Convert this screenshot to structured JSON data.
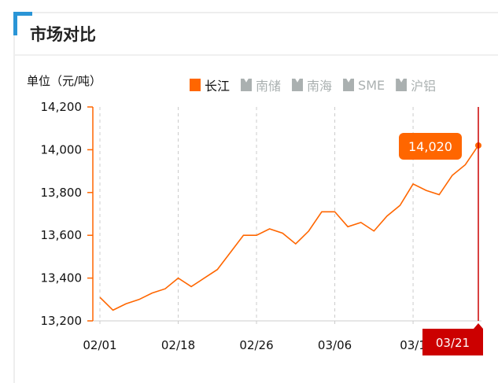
{
  "header": {
    "title": "市场对比"
  },
  "chart_data": {
    "type": "line",
    "ylabel": "单位（元/吨）",
    "ylim": [
      13200,
      14200
    ],
    "yticks": [
      "13,200",
      "13,400",
      "13,600",
      "13,800",
      "14,000",
      "14,200"
    ],
    "ytick_values": [
      13200,
      13400,
      13600,
      13800,
      14000,
      14200
    ],
    "xtick_labels": [
      "02/01",
      "02/18",
      "02/26",
      "03/06",
      "03/1"
    ],
    "xtick_indices": [
      0,
      6,
      12,
      18,
      24
    ],
    "grid": "vertical dashed",
    "legend": {
      "placement": "top",
      "items": [
        {
          "name": "长江",
          "active": true,
          "color": "#ff6600"
        },
        {
          "name": "南储",
          "active": false,
          "color": "#aab0b0"
        },
        {
          "name": "南海",
          "active": false,
          "color": "#aab0b0"
        },
        {
          "name": "SME",
          "active": false,
          "color": "#aab0b0"
        },
        {
          "name": "沪铝",
          "active": false,
          "color": "#aab0b0"
        }
      ]
    },
    "series": [
      {
        "name": "长江",
        "color": "#ff6600",
        "values": [
          13310,
          13250,
          13280,
          13300,
          13330,
          13350,
          13400,
          13360,
          13400,
          13440,
          13520,
          13600,
          13600,
          13630,
          13610,
          13560,
          13620,
          13710,
          13710,
          13640,
          13660,
          13620,
          13690,
          13740,
          13840,
          13810,
          13790,
          13880,
          13930,
          14020
        ]
      }
    ],
    "tooltip": {
      "value": "14,020",
      "date": "03/21",
      "color": "#ff6600",
      "crosshair_color": "#cc0000"
    }
  }
}
